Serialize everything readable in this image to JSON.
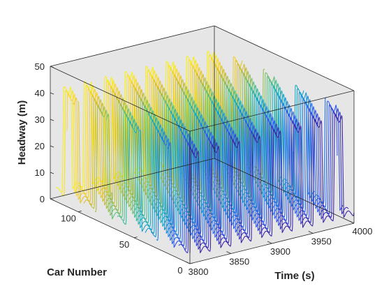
{
  "chart_data": {
    "type": "line",
    "xlabel": "Time (s)",
    "ylabel": "Car Number",
    "zlabel": "Headway (m)",
    "time_range": [
      3800,
      4000
    ],
    "car_range": [
      0,
      125
    ],
    "headway_range": [
      0,
      50
    ],
    "time_ticks": [
      "3800",
      "3850",
      "3900",
      "3950",
      "4000"
    ],
    "time_tick_values": [
      3800,
      3850,
      3900,
      3950,
      4000
    ],
    "car_ticks": [
      "0",
      "50",
      "100"
    ],
    "car_tick_values": [
      0,
      50,
      100
    ],
    "headway_ticks": [
      "0",
      "10",
      "20",
      "30",
      "40",
      "50"
    ],
    "headway_tick_values": [
      0,
      10,
      20,
      30,
      40,
      50
    ],
    "grid": false,
    "background": "#e6e6e6",
    "colormap": [
      "#3e26a8",
      "#2f59f0",
      "#1f85e0",
      "#14a8c8",
      "#3cbc9a",
      "#8cc05a",
      "#d3bb30",
      "#fbd52a",
      "#f9fb0e"
    ],
    "series_description": "stop-and-go headway traces, one per car",
    "car_numbers": [
      0,
      5,
      10,
      15,
      20,
      25,
      30,
      35,
      40,
      45,
      50,
      55,
      60,
      65,
      70,
      75,
      80,
      85,
      90,
      95,
      100,
      105,
      110,
      115,
      120
    ],
    "headway_low": 4,
    "headway_high": 41,
    "wave_period_s": 25,
    "wave_phase_shift_s_per_car": 0.9
  }
}
